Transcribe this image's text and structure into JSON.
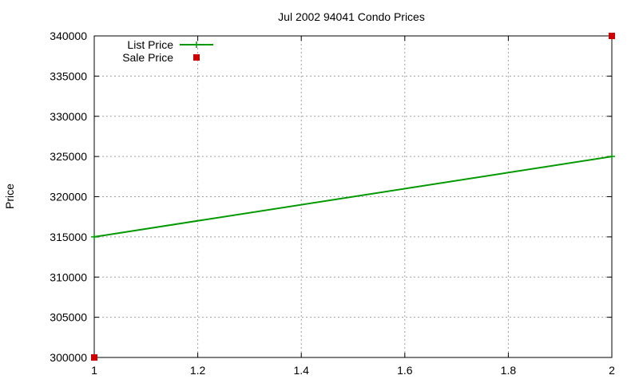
{
  "chart_data": {
    "type": "line",
    "title": "Jul 2002 94041 Condo Prices",
    "xlabel": "",
    "ylabel": "Price",
    "xlim": [
      1,
      2
    ],
    "ylim": [
      300000,
      340000
    ],
    "x_ticks": [
      1,
      1.2,
      1.4,
      1.6,
      1.8,
      2
    ],
    "x_tick_labels": [
      "1",
      "1.2",
      "1.4",
      "1.6",
      "1.8",
      "2"
    ],
    "y_ticks": [
      300000,
      305000,
      310000,
      315000,
      320000,
      325000,
      330000,
      335000,
      340000
    ],
    "y_tick_labels": [
      "300000",
      "305000",
      "310000",
      "315000",
      "320000",
      "325000",
      "330000",
      "335000",
      "340000"
    ],
    "grid": true,
    "legend_position": "top-left",
    "series": [
      {
        "name": "List Price",
        "style": "linespoints",
        "color": "#009900",
        "x": [
          1,
          2
        ],
        "values": [
          315000,
          325000
        ]
      },
      {
        "name": "Sale Price",
        "style": "points",
        "color": "#cc0000",
        "x": [
          1,
          2
        ],
        "values": [
          300000,
          340000
        ]
      }
    ]
  }
}
